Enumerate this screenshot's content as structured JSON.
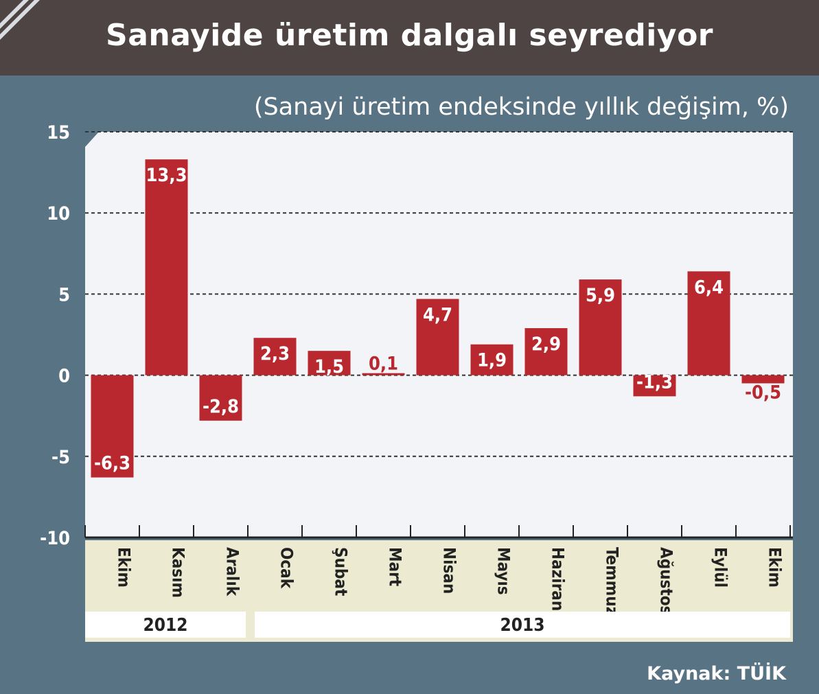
{
  "title": "Sanayide üretim dalgalı seyrediyor",
  "subtitle": "(Sanayi üretim endeksinde yıllık değişim, %)",
  "source": "Kaynak: TÜİK",
  "colors": {
    "bar": "#b8282e",
    "header": "#4e4443",
    "background": "#587384",
    "plot": "#f3f4f8",
    "label_band": "#ecead0"
  },
  "chart_data": {
    "type": "bar",
    "categories": [
      "Ekim",
      "Kasım",
      "Aralık",
      "Ocak",
      "Şubat",
      "Mart",
      "Nisan",
      "Mayıs",
      "Haziran",
      "Temmuz",
      "Ağustos",
      "Eylül",
      "Ekim"
    ],
    "values": [
      -6.3,
      13.3,
      -2.8,
      2.3,
      1.5,
      0.1,
      4.7,
      1.9,
      2.9,
      5.9,
      -1.3,
      6.4,
      -0.5
    ],
    "value_labels": [
      "-6,3",
      "13,3",
      "-2,8",
      "2,3",
      "1,5",
      "0,1",
      "4,7",
      "1,9",
      "2,9",
      "5,9",
      "-1,3",
      "6,4",
      "-0,5"
    ],
    "year_groups": [
      {
        "label": "2012",
        "count": 3
      },
      {
        "label": "2013",
        "count": 10
      }
    ],
    "yticks": [
      15,
      10,
      5,
      0,
      -5,
      -10
    ],
    "ylim": [
      -10,
      15
    ],
    "grid": true,
    "title": "Sanayide üretim dalgalı seyrediyor",
    "subtitle": "(Sanayi üretim endeksinde yıllık değişim, %)"
  }
}
